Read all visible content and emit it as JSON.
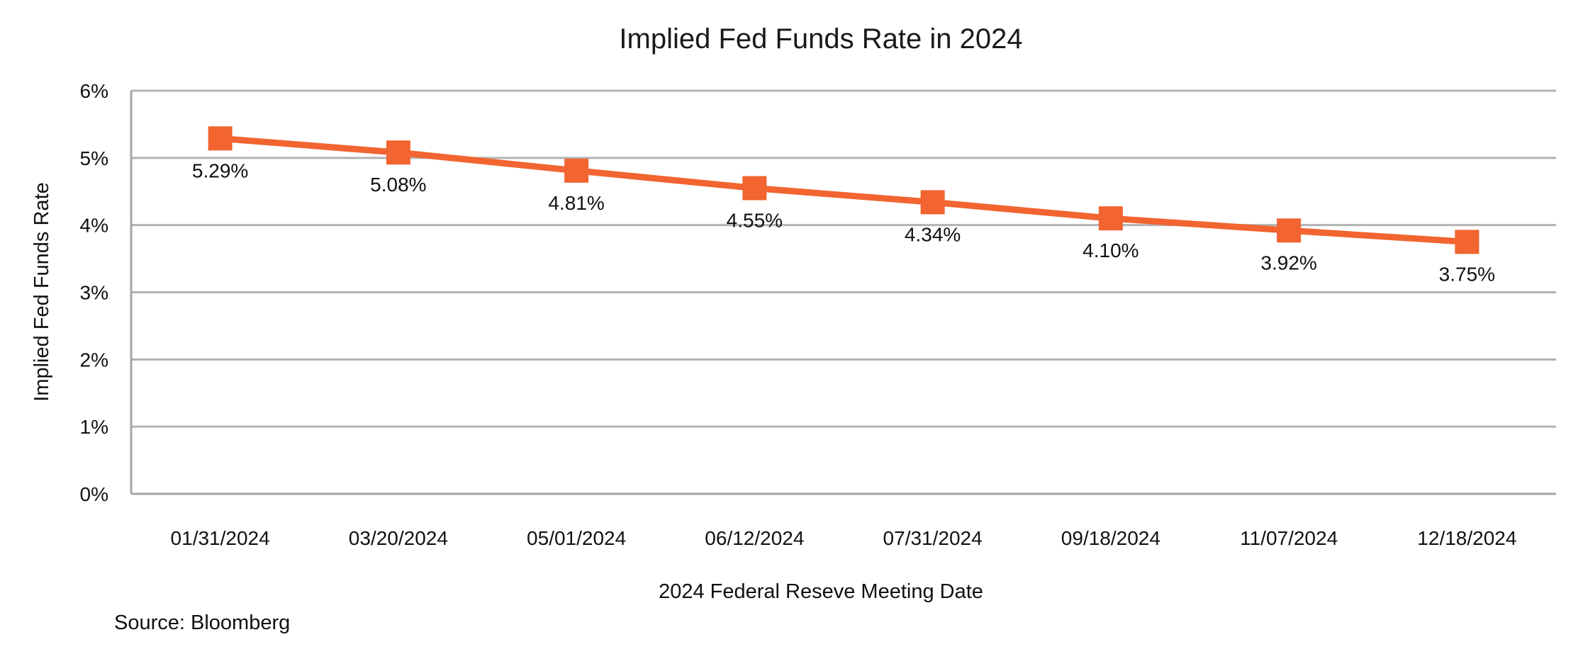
{
  "chart_data": {
    "type": "line",
    "title": "Implied Fed Funds Rate in 2024",
    "xlabel": "2024 Federal Reseve Meeting Date",
    "ylabel": "Implied Fed Funds Rate",
    "categories": [
      "01/31/2024",
      "03/20/2024",
      "05/01/2024",
      "06/12/2024",
      "07/31/2024",
      "09/18/2024",
      "11/07/2024",
      "12/18/2024"
    ],
    "series": [
      {
        "name": "Implied Fed Funds Rate",
        "values": [
          5.29,
          5.08,
          4.81,
          4.55,
          4.34,
          4.1,
          3.92,
          3.75
        ],
        "data_labels": [
          "5.29%",
          "5.08%",
          "4.81%",
          "4.55%",
          "4.34%",
          "4.10%",
          "3.92%",
          "3.75%"
        ],
        "color": "#f26430",
        "marker": "square"
      }
    ],
    "ylim": [
      0,
      6
    ],
    "yticks": [
      0,
      1,
      2,
      3,
      4,
      5,
      6
    ],
    "ytick_labels": [
      "0%",
      "1%",
      "2%",
      "3%",
      "4%",
      "5%",
      "6%"
    ],
    "grid": true,
    "legend": "none",
    "colors": {
      "line": "#f26430",
      "grid": "#b3b3b3",
      "axis": "#a6a6a6"
    }
  },
  "source": "Source: Bloomberg"
}
